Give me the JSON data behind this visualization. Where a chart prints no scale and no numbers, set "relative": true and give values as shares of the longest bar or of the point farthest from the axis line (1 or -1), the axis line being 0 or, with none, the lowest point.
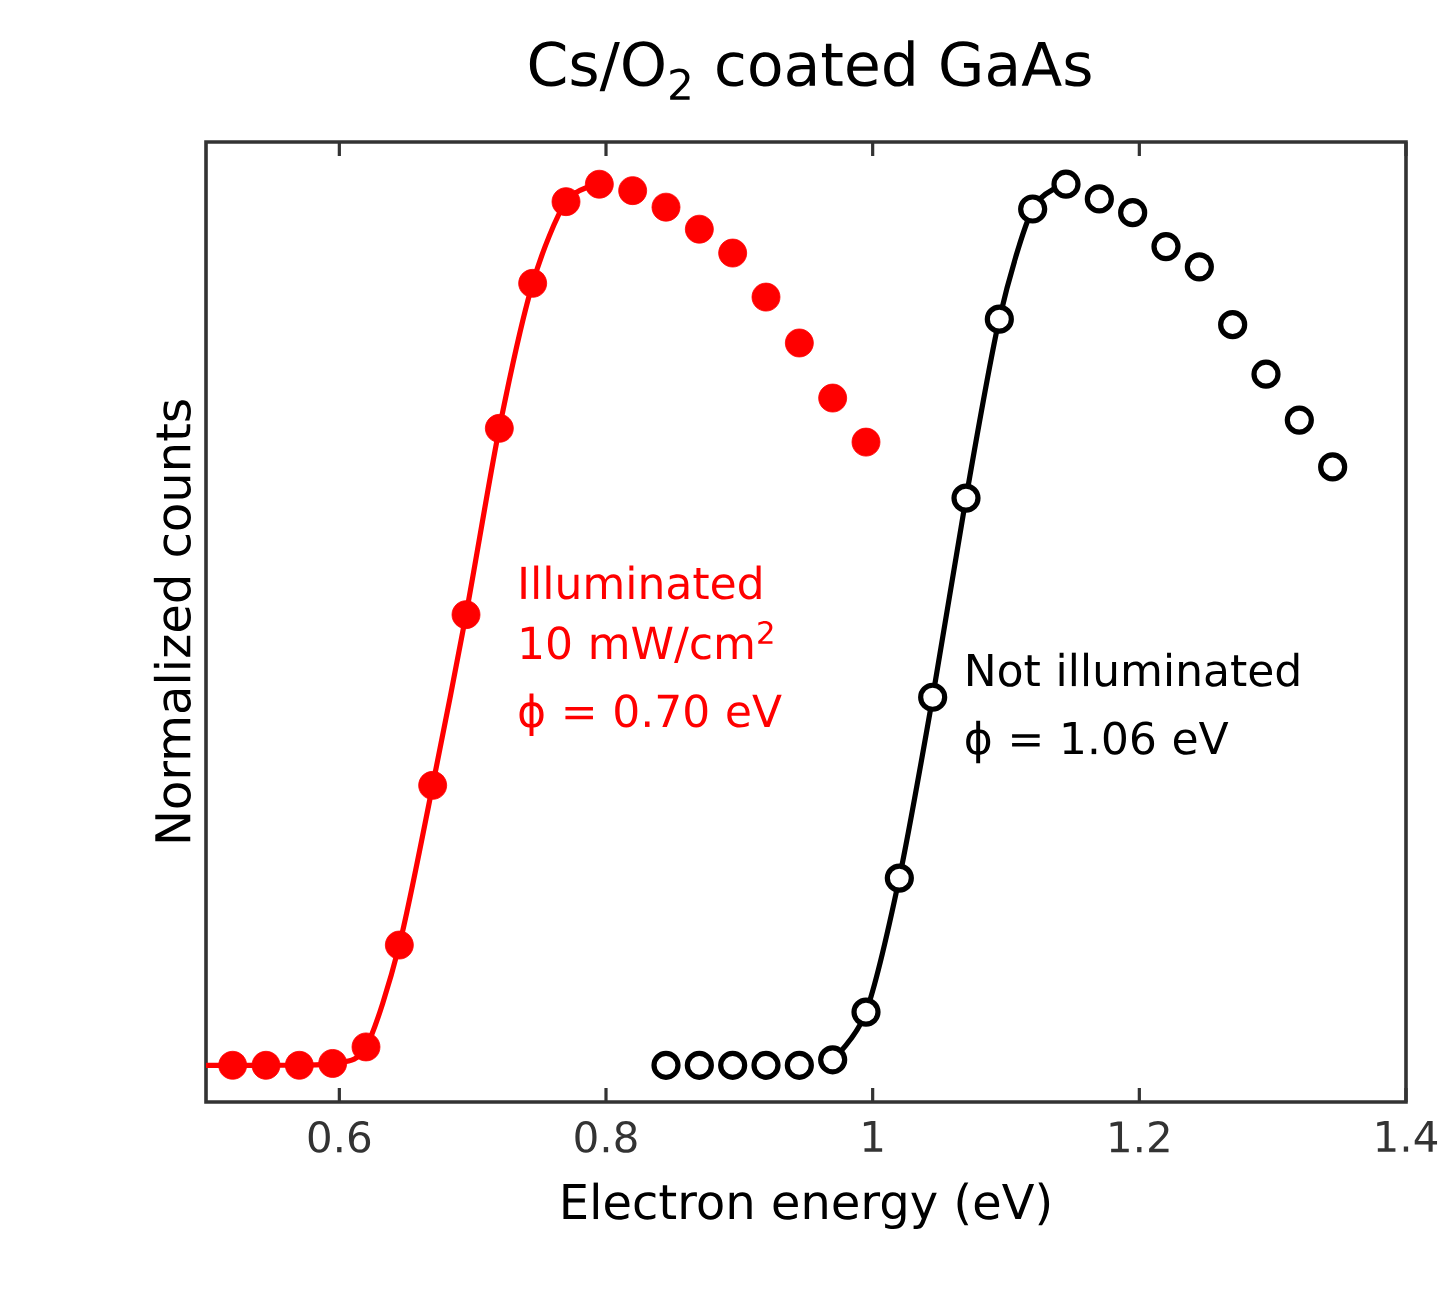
{
  "chart_data": {
    "type": "scatter",
    "title": "Cs/O$_{2}$ coated GaAs",
    "xlabel": "Electron energy (eV)",
    "ylabel": "Normalized counts",
    "relative": true,
    "xlim": [
      0.5,
      1.4
    ],
    "xticks": [
      0.6,
      0.8,
      1,
      1.2,
      1.4
    ],
    "series": [
      {
        "name": "Illuminated 10 mW/cm$^{2}$",
        "marker": "circle",
        "color": "#ff0000",
        "x": [
          0.52,
          0.545,
          0.57,
          0.595,
          0.62,
          0.645,
          0.67,
          0.695,
          0.72,
          0.745,
          0.77,
          0.795,
          0.82,
          0.845,
          0.87,
          0.895,
          0.92,
          0.945,
          0.97,
          0.995
        ],
        "values": [
          0.04,
          0.04,
          0.04,
          0.042,
          0.06,
          0.171,
          0.345,
          0.531,
          0.734,
          0.892,
          0.981,
          1.0,
          0.993,
          0.975,
          0.951,
          0.925,
          0.877,
          0.827,
          0.767,
          0.719
        ]
      },
      {
        "type": "line",
        "color": "#ff0000",
        "x": [
          0.5,
          0.545,
          0.595,
          0.62,
          0.645,
          0.67,
          0.695,
          0.72,
          0.745,
          0.77,
          0.795
        ],
        "values": [
          0.04,
          0.04,
          0.042,
          0.06,
          0.171,
          0.345,
          0.531,
          0.734,
          0.892,
          0.981,
          1.0
        ]
      },
      {
        "name": "Not illuminated",
        "marker": "circle open",
        "color": "#000000",
        "x": [
          0.845,
          0.87,
          0.895,
          0.92,
          0.945,
          0.97,
          0.995,
          1.02,
          1.045,
          1.07,
          1.095,
          1.12,
          1.145,
          1.17,
          1.195,
          1.22,
          1.245,
          1.27,
          1.295,
          1.32,
          1.345
        ],
        "values": [
          0.04,
          0.04,
          0.04,
          0.04,
          0.04,
          0.046,
          0.098,
          0.244,
          0.441,
          0.658,
          0.853,
          0.973,
          1.0,
          0.984,
          0.969,
          0.932,
          0.91,
          0.847,
          0.793,
          0.743,
          0.692
        ]
      },
      {
        "type": "line",
        "color": "#000000",
        "x": [
          0.97,
          0.995,
          1.02,
          1.045,
          1.07,
          1.095,
          1.12,
          1.145
        ],
        "values": [
          0.046,
          0.098,
          0.244,
          0.441,
          0.658,
          0.853,
          0.973,
          1.0
        ]
      }
    ],
    "annotations": [
      "ϕ = 0.70 eV",
      "ϕ = 1.06 eV"
    ]
  }
}
